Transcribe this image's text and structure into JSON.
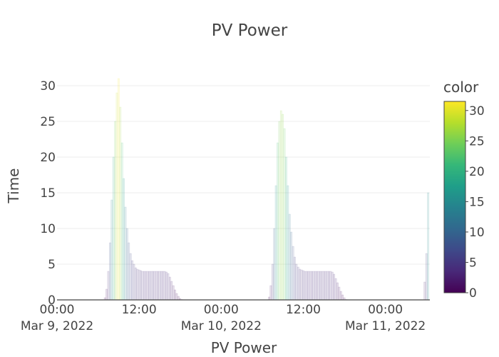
{
  "chart_data": {
    "type": "bar",
    "title": "PV Power",
    "xlabel": "PV Power",
    "ylabel": "Time",
    "ylim": [
      0,
      31
    ],
    "yticks": [
      0,
      5,
      10,
      15,
      20,
      25,
      30
    ],
    "xlim": [
      "2022-03-09T00:00",
      "2022-03-11T06:30"
    ],
    "xticks": [
      {
        "at": "2022-03-09T00:00",
        "label": "00:00",
        "sublabel": "Mar 9, 2022"
      },
      {
        "at": "2022-03-09T12:00",
        "label": "12:00",
        "sublabel": ""
      },
      {
        "at": "2022-03-10T00:00",
        "label": "00:00",
        "sublabel": "Mar 10, 2022"
      },
      {
        "at": "2022-03-10T12:00",
        "label": "12:00",
        "sublabel": ""
      },
      {
        "at": "2022-03-11T00:00",
        "label": "00:00",
        "sublabel": "Mar 11, 2022"
      }
    ],
    "colorbar": {
      "title": "color",
      "range": [
        0,
        31.5
      ],
      "ticks": [
        0,
        5,
        10,
        15,
        20,
        25,
        30
      ],
      "colorscale": [
        "#440154",
        "#482878",
        "#3e4989",
        "#31688e",
        "#26828e",
        "#1f9e89",
        "#35b779",
        "#6ece58",
        "#b5de2b",
        "#fde725"
      ]
    },
    "bar_opacity": 0.12,
    "series": [
      {
        "x": [
          "2022-03-09T07:00",
          "2022-03-09T07:15",
          "2022-03-09T07:30",
          "2022-03-09T07:45",
          "2022-03-09T08:00",
          "2022-03-09T08:15",
          "2022-03-09T08:30",
          "2022-03-09T08:45",
          "2022-03-09T09:00",
          "2022-03-09T09:15",
          "2022-03-09T09:30",
          "2022-03-09T09:45",
          "2022-03-09T10:00",
          "2022-03-09T10:15",
          "2022-03-09T10:30",
          "2022-03-09T10:45",
          "2022-03-09T11:00",
          "2022-03-09T11:15",
          "2022-03-09T11:30",
          "2022-03-09T11:45",
          "2022-03-09T12:00",
          "2022-03-09T12:15",
          "2022-03-09T12:30",
          "2022-03-09T12:45",
          "2022-03-09T13:00",
          "2022-03-09T13:15",
          "2022-03-09T13:30",
          "2022-03-09T13:45",
          "2022-03-09T14:00",
          "2022-03-09T14:15",
          "2022-03-09T14:30",
          "2022-03-09T14:45",
          "2022-03-09T15:00",
          "2022-03-09T15:15",
          "2022-03-09T15:30",
          "2022-03-09T15:45",
          "2022-03-09T16:00",
          "2022-03-09T16:15",
          "2022-03-09T16:30",
          "2022-03-09T16:45",
          "2022-03-09T17:00",
          "2022-03-09T17:15",
          "2022-03-09T17:30",
          "2022-03-09T17:45",
          "2022-03-09T18:00",
          "2022-03-09T18:15",
          "2022-03-10T07:00",
          "2022-03-10T07:15",
          "2022-03-10T07:30",
          "2022-03-10T07:45",
          "2022-03-10T08:00",
          "2022-03-10T08:15",
          "2022-03-10T08:30",
          "2022-03-10T08:45",
          "2022-03-10T09:00",
          "2022-03-10T09:15",
          "2022-03-10T09:30",
          "2022-03-10T09:45",
          "2022-03-10T10:00",
          "2022-03-10T10:15",
          "2022-03-10T10:30",
          "2022-03-10T10:45",
          "2022-03-10T11:00",
          "2022-03-10T11:15",
          "2022-03-10T11:30",
          "2022-03-10T11:45",
          "2022-03-10T12:00",
          "2022-03-10T12:15",
          "2022-03-10T12:30",
          "2022-03-10T12:45",
          "2022-03-10T13:00",
          "2022-03-10T13:15",
          "2022-03-10T13:30",
          "2022-03-10T13:45",
          "2022-03-10T14:00",
          "2022-03-10T14:15",
          "2022-03-10T14:30",
          "2022-03-10T14:45",
          "2022-03-10T15:00",
          "2022-03-10T15:15",
          "2022-03-10T15:30",
          "2022-03-10T15:45",
          "2022-03-10T16:00",
          "2022-03-10T16:15",
          "2022-03-10T16:30",
          "2022-03-10T16:45",
          "2022-03-10T17:00",
          "2022-03-10T17:15",
          "2022-03-10T17:30",
          "2022-03-10T17:45",
          "2022-03-10T18:00",
          "2022-03-10T18:15",
          "2022-03-11T05:45",
          "2022-03-11T06:00",
          "2022-03-11T06:15"
        ],
        "y": [
          0.3,
          1.5,
          4,
          8,
          14,
          20,
          25,
          29,
          31,
          27,
          22,
          17,
          13,
          10,
          8,
          6.5,
          5.5,
          5,
          4.5,
          4.3,
          4.2,
          4.1,
          4,
          4,
          4,
          4,
          4,
          4,
          4,
          4,
          4,
          4,
          4,
          4,
          4,
          4,
          3.9,
          3.7,
          3.2,
          2.6,
          2,
          1.4,
          0.9,
          0.5,
          0.2,
          0.05,
          0.4,
          2,
          5,
          10,
          16,
          22,
          25,
          26.5,
          26,
          24,
          20,
          16,
          12,
          9.5,
          7.5,
          6,
          5,
          4.6,
          4.3,
          4.2,
          4.1,
          4,
          4,
          4,
          4,
          4,
          4,
          4,
          4,
          4,
          4,
          4,
          4,
          4,
          4,
          4,
          4,
          3.9,
          3.6,
          3,
          2.4,
          1.8,
          1.2,
          0.7,
          0.3,
          0.05,
          2.5,
          6.5,
          15
        ]
      }
    ]
  }
}
